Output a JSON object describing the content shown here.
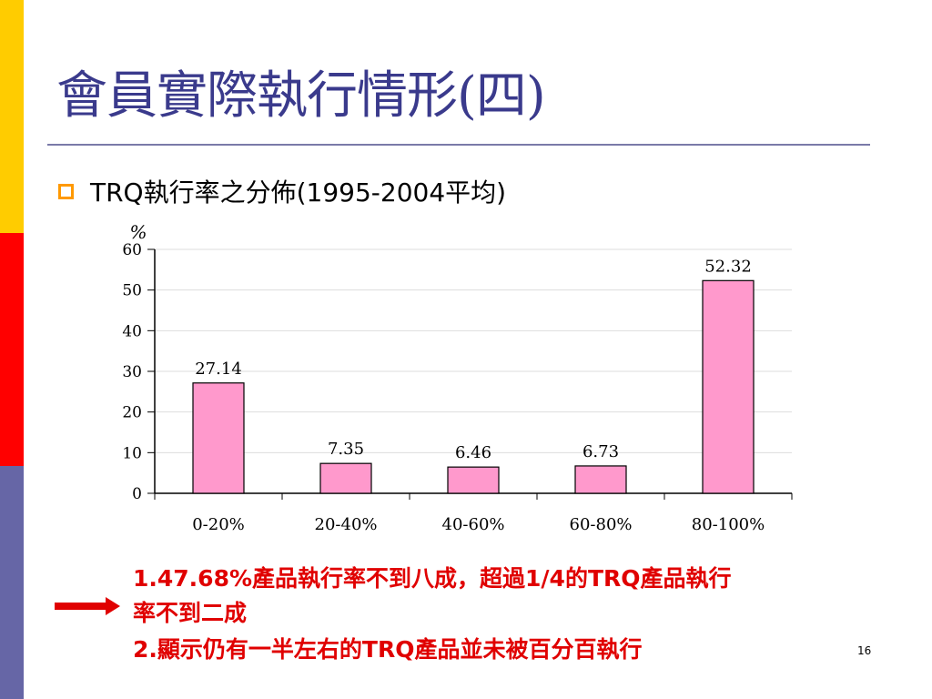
{
  "slide": {
    "title": "會員實際執行情形(四)",
    "bullet": "TRQ執行率之分佈(1995-2004平均)",
    "conclusion_line1": "1.47.68%產品執行率不到八成，超過1/4的TRQ產品執行",
    "conclusion_line2": "率不到二成",
    "conclusion_line3": "2.顯示仍有一半左右的TRQ產品並未被百分百執行",
    "page_number": "16"
  },
  "chart_data": {
    "type": "bar",
    "title": "",
    "xlabel": "",
    "ylabel": "%",
    "categories": [
      "0-20%",
      "20-40%",
      "40-60%",
      "60-80%",
      "80-100%"
    ],
    "values": [
      27.14,
      7.35,
      6.46,
      6.73,
      52.32
    ],
    "value_labels": [
      "27.14",
      "7.35",
      "6.46",
      "6.73",
      "52.32"
    ],
    "ylim": [
      0,
      60
    ],
    "yticks": [
      "0",
      "10",
      "20",
      "30",
      "40",
      "50",
      "60"
    ],
    "grid": true,
    "legend": "none",
    "colors": {
      "bar_fill": "#ff99cc",
      "bar_stroke": "#000000",
      "grid": "#dddddd"
    }
  }
}
